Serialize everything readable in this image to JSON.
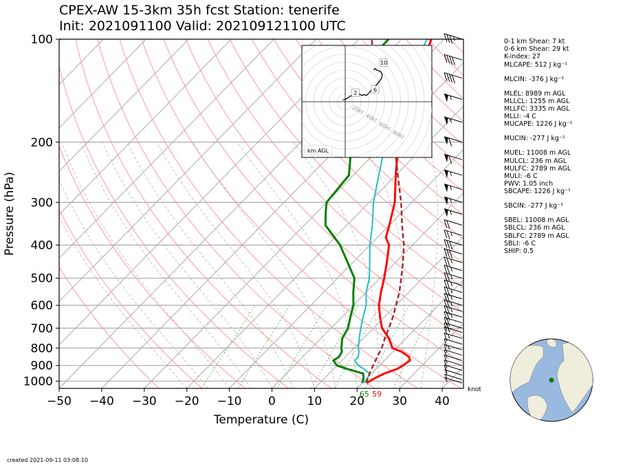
{
  "title": "CPEX-AW 15-3km  35h fcst  Station: tenerife",
  "subtitle": "Init: 2021091100  Valid: 202109121100 UTC",
  "footer": "created 2021-09-11 03:08:10",
  "wind_unit": "knot",
  "hodograph_label": "km AGL",
  "surface_labels": {
    "dewpoint": "65",
    "temperature": "59"
  },
  "stats": [
    "0-1 km Shear: 7 kt",
    "0-6 km Shear: 29 kt",
    "K-index: 27",
    "MLCAPE: 512 J kg⁻¹",
    "MLCIN: -376 J kg⁻¹",
    "MLEL: 8989 m AGL",
    "MLLCL: 1255 m AGL",
    "MLLFC: 3335 m AGL",
    "MLLI: -4 C",
    "MUCAPE: 1226 J kg⁻¹",
    "MUCIN: -277 J kg⁻¹",
    "MUEL: 11008 m AGL",
    "MULCL: 236 m AGL",
    "MULFC: 2789 m AGL",
    "MULI: -6 C",
    "PWV: 1.05 inch",
    "SBCAPE: 1226 J kg⁻¹",
    "SBCIN: -277 J kg⁻¹",
    "SBEL: 11008 m AGL",
    "SBLCL: 236 m AGL",
    "SBLFC: 2789 m AGL",
    "SBLI: -6 C",
    "SHIP: 0.5"
  ],
  "colors": {
    "temperature": "#ff0000",
    "dewpoint": "#008000",
    "wetbulb": "#1fbfbf",
    "parcel": "#a52a2a",
    "dry_adiabat": "#ff9999",
    "moist_adiabat": "#aaaaaa",
    "mixing_ratio": "#66bb66",
    "isobar": "#aaaaaa",
    "isotherm": "#aaaaaa",
    "ocean": "#9ab9e0",
    "land": "#efeedd",
    "station": "#008000"
  },
  "chart_data": {
    "type": "skew-t log-p sounding",
    "xlabel": "Temperature (C)",
    "ylabel": "Pressure (hPa)",
    "xlim": [
      -50,
      45
    ],
    "ylim": [
      1050,
      100
    ],
    "x_ticks": [
      -50,
      -40,
      -30,
      -20,
      -10,
      0,
      10,
      20,
      30,
      40
    ],
    "y_ticks": [
      100,
      200,
      300,
      400,
      500,
      600,
      700,
      800,
      900,
      1000
    ],
    "series": [
      {
        "name": "temperature",
        "points": [
          [
            1013,
            21
          ],
          [
            975,
            22
          ],
          [
            950,
            23
          ],
          [
            920,
            25
          ],
          [
            900,
            25.5
          ],
          [
            870,
            26
          ],
          [
            850,
            25
          ],
          [
            820,
            22
          ],
          [
            800,
            19
          ],
          [
            750,
            16
          ],
          [
            700,
            12
          ],
          [
            650,
            9
          ],
          [
            600,
            6
          ],
          [
            550,
            3.5
          ],
          [
            500,
            1
          ],
          [
            450,
            -2
          ],
          [
            400,
            -5.5
          ],
          [
            380,
            -8
          ],
          [
            350,
            -10
          ],
          [
            300,
            -14
          ],
          [
            250,
            -20
          ],
          [
            200,
            -27
          ],
          [
            180,
            -31
          ],
          [
            160,
            -34
          ],
          [
            150,
            -35
          ],
          [
            140,
            -36
          ],
          [
            120,
            -39
          ],
          [
            100,
            -43
          ]
        ]
      },
      {
        "name": "dewpoint",
        "points": [
          [
            1013,
            20
          ],
          [
            975,
            19
          ],
          [
            950,
            18
          ],
          [
            920,
            13
          ],
          [
            900,
            10
          ],
          [
            870,
            8
          ],
          [
            850,
            8.5
          ],
          [
            820,
            8
          ],
          [
            800,
            7
          ],
          [
            750,
            5
          ],
          [
            700,
            4
          ],
          [
            650,
            2
          ],
          [
            600,
            0
          ],
          [
            550,
            -3
          ],
          [
            500,
            -6
          ],
          [
            400,
            -17
          ],
          [
            350,
            -25
          ],
          [
            320,
            -28
          ],
          [
            300,
            -30
          ],
          [
            250,
            -31
          ],
          [
            220,
            -35
          ],
          [
            200,
            -42
          ],
          [
            180,
            -45
          ],
          [
            160,
            -48
          ],
          [
            150,
            -50
          ],
          [
            130,
            -52
          ],
          [
            120,
            -53
          ],
          [
            100,
            -53
          ]
        ]
      },
      {
        "name": "wetbulb",
        "points": [
          [
            1013,
            20.5
          ],
          [
            975,
            20
          ],
          [
            950,
            19.5
          ],
          [
            920,
            17
          ],
          [
            900,
            15
          ],
          [
            870,
            13
          ],
          [
            850,
            13
          ],
          [
            820,
            12
          ],
          [
            800,
            11
          ],
          [
            750,
            9
          ],
          [
            700,
            7
          ],
          [
            650,
            5
          ],
          [
            600,
            3
          ],
          [
            550,
            0
          ],
          [
            500,
            -2.5
          ],
          [
            450,
            -6
          ],
          [
            400,
            -10
          ],
          [
            350,
            -14
          ],
          [
            300,
            -19
          ],
          [
            250,
            -24
          ],
          [
            200,
            -30
          ],
          [
            180,
            -33
          ],
          [
            160,
            -36
          ],
          [
            150,
            -37
          ],
          [
            140,
            -38
          ],
          [
            130,
            -39
          ],
          [
            120,
            -41
          ],
          [
            100,
            -44
          ]
        ]
      },
      {
        "name": "parcel",
        "points": [
          [
            1013,
            21
          ],
          [
            990,
            20.4
          ],
          [
            950,
            19.5
          ],
          [
            900,
            18.5
          ],
          [
            850,
            17.5
          ],
          [
            800,
            16.5
          ],
          [
            750,
            15
          ],
          [
            700,
            13.6
          ],
          [
            650,
            12
          ],
          [
            600,
            10
          ],
          [
            550,
            7.8
          ],
          [
            500,
            5
          ],
          [
            450,
            1.8
          ],
          [
            400,
            -2
          ],
          [
            350,
            -7
          ],
          [
            300,
            -12.5
          ],
          [
            250,
            -19.5
          ],
          [
            200,
            -28
          ],
          [
            150,
            -41
          ],
          [
            120,
            -50
          ],
          [
            100,
            -57
          ]
        ]
      }
    ],
    "wind_barbs_kt": [
      {
        "p": 1013,
        "speed": 5
      },
      {
        "p": 990,
        "speed": 5
      },
      {
        "p": 960,
        "speed": 5
      },
      {
        "p": 930,
        "speed": 10
      },
      {
        "p": 900,
        "speed": 10
      },
      {
        "p": 870,
        "speed": 10
      },
      {
        "p": 840,
        "speed": 10
      },
      {
        "p": 810,
        "speed": 15
      },
      {
        "p": 780,
        "speed": 10
      },
      {
        "p": 750,
        "speed": 15
      },
      {
        "p": 720,
        "speed": 15
      },
      {
        "p": 700,
        "speed": 20
      },
      {
        "p": 675,
        "speed": 20
      },
      {
        "p": 650,
        "speed": 25
      },
      {
        "p": 625,
        "speed": 25
      },
      {
        "p": 600,
        "speed": 25
      },
      {
        "p": 575,
        "speed": 25
      },
      {
        "p": 550,
        "speed": 25
      },
      {
        "p": 525,
        "speed": 25
      },
      {
        "p": 500,
        "speed": 25
      },
      {
        "p": 475,
        "speed": 25
      },
      {
        "p": 450,
        "speed": 25
      },
      {
        "p": 425,
        "speed": 30
      },
      {
        "p": 400,
        "speed": 30
      },
      {
        "p": 375,
        "speed": 25
      },
      {
        "p": 350,
        "speed": 20
      },
      {
        "p": 325,
        "speed": 55
      },
      {
        "p": 300,
        "speed": 55
      },
      {
        "p": 275,
        "speed": 55
      },
      {
        "p": 250,
        "speed": 55
      },
      {
        "p": 225,
        "speed": 60
      },
      {
        "p": 200,
        "speed": 60
      },
      {
        "p": 175,
        "speed": 55
      },
      {
        "p": 150,
        "speed": 55
      },
      {
        "p": 130,
        "speed": 40
      },
      {
        "p": 115,
        "speed": 40
      },
      {
        "p": 100,
        "speed": 35
      }
    ],
    "hodograph": {
      "rings_kt": [
        20,
        40,
        60,
        80
      ],
      "height_labels_km": [
        "2",
        "6",
        "10"
      ],
      "points_kt": [
        [
          -3,
          2
        ],
        [
          2,
          4
        ],
        [
          8,
          8
        ],
        [
          14,
          12
        ],
        [
          21,
          8
        ],
        [
          24,
          9
        ],
        [
          27,
          8
        ],
        [
          31,
          12
        ],
        [
          36,
          18
        ],
        [
          42,
          24
        ],
        [
          46,
          30
        ],
        [
          47,
          34
        ],
        [
          45,
          38
        ],
        [
          40,
          40
        ],
        [
          38,
          42
        ],
        [
          36,
          40
        ]
      ]
    },
    "globe": {
      "station": "tenerife",
      "view": "Atlantic Ocean"
    }
  }
}
